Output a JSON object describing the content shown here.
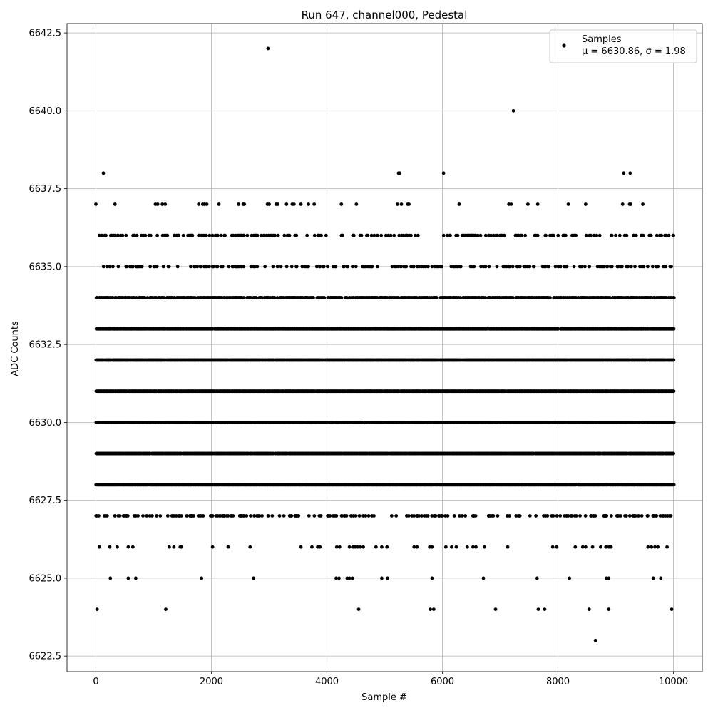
{
  "chart_data": {
    "type": "scatter",
    "title": "Run 647, channel000, Pedestal",
    "xlabel": "Sample #",
    "ylabel": "ADC Counts",
    "xlim": [
      -500,
      10500
    ],
    "ylim": [
      6622.0,
      6642.8
    ],
    "x_ticks": [
      0,
      2000,
      4000,
      6000,
      8000,
      10000
    ],
    "x_tick_labels": [
      "0",
      "2000",
      "4000",
      "6000",
      "8000",
      "10000"
    ],
    "y_ticks": [
      6622.5,
      6625.0,
      6627.5,
      6630.0,
      6632.5,
      6635.0,
      6637.5,
      6640.0,
      6642.5
    ],
    "y_tick_labels": [
      "6622.5",
      "6625.0",
      "6627.5",
      "6630.0",
      "6632.5",
      "6635.0",
      "6637.5",
      "6640.0",
      "6642.5"
    ],
    "grid": true,
    "legend": {
      "placement": "top-right",
      "entry_name": "Samples",
      "entry_stats": "μ = 6630.86, σ = 1.98"
    },
    "marker_color": "#000000",
    "n_samples": 10000,
    "sample_range": [
      0,
      10000
    ],
    "level_rows": [
      {
        "y": 6631,
        "fill": "dense"
      },
      {
        "y": 6632,
        "fill": "dense"
      },
      {
        "y": 6630,
        "fill": "dense"
      },
      {
        "y": 6629,
        "fill": "dense"
      },
      {
        "y": 6633,
        "fill": "dense"
      },
      {
        "y": 6628,
        "fill": "dense"
      },
      {
        "y": 6634,
        "fill": "medium"
      },
      {
        "y": 6627,
        "fill": "sparse"
      },
      {
        "y": 6635,
        "fill": "sparse"
      },
      {
        "y": 6636,
        "fill": "sparse"
      }
    ],
    "series": [
      {
        "points": [
          [
            0,
            6637
          ],
          [
            2980,
            6642
          ],
          [
            7230,
            6640
          ],
          [
            130,
            6638
          ],
          [
            5240,
            6638
          ],
          [
            5260,
            6638
          ],
          [
            6020,
            6638
          ],
          [
            9140,
            6638
          ],
          [
            9250,
            6638
          ],
          [
            330,
            6637
          ],
          [
            1030,
            6637
          ],
          [
            1070,
            6637
          ],
          [
            1150,
            6637
          ],
          [
            1200,
            6637
          ],
          [
            1780,
            6637
          ],
          [
            1850,
            6637
          ],
          [
            1880,
            6637
          ],
          [
            1920,
            6637
          ],
          [
            2130,
            6637
          ],
          [
            2470,
            6637
          ],
          [
            2550,
            6637
          ],
          [
            2570,
            6637
          ],
          [
            2970,
            6637
          ],
          [
            3000,
            6637
          ],
          [
            3120,
            6637
          ],
          [
            3150,
            6637
          ],
          [
            3300,
            6637
          ],
          [
            3400,
            6637
          ],
          [
            3430,
            6637
          ],
          [
            3550,
            6637
          ],
          [
            3680,
            6637
          ],
          [
            3780,
            6637
          ],
          [
            4250,
            6637
          ],
          [
            4510,
            6637
          ],
          [
            5220,
            6637
          ],
          [
            5290,
            6637
          ],
          [
            5400,
            6637
          ],
          [
            5420,
            6637
          ],
          [
            6290,
            6637
          ],
          [
            7150,
            6637
          ],
          [
            7190,
            6637
          ],
          [
            7480,
            6637
          ],
          [
            7650,
            6637
          ],
          [
            8180,
            6637
          ],
          [
            8480,
            6637
          ],
          [
            9120,
            6637
          ],
          [
            9240,
            6637
          ],
          [
            9260,
            6637
          ],
          [
            9470,
            6637
          ],
          [
            20,
            6624
          ],
          [
            1210,
            6624
          ],
          [
            4550,
            6624
          ],
          [
            5790,
            6624
          ],
          [
            5850,
            6624
          ],
          [
            6920,
            6624
          ],
          [
            7660,
            6624
          ],
          [
            7770,
            6624
          ],
          [
            8540,
            6624
          ],
          [
            8880,
            6624
          ],
          [
            9970,
            6624
          ],
          [
            8650,
            6623
          ],
          [
            250,
            6625
          ],
          [
            560,
            6625
          ],
          [
            690,
            6625
          ],
          [
            1830,
            6625
          ],
          [
            2730,
            6625
          ],
          [
            4160,
            6625
          ],
          [
            4210,
            6625
          ],
          [
            4350,
            6625
          ],
          [
            4390,
            6625
          ],
          [
            4440,
            6625
          ],
          [
            4950,
            6625
          ],
          [
            5050,
            6625
          ],
          [
            5820,
            6625
          ],
          [
            6710,
            6625
          ],
          [
            7640,
            6625
          ],
          [
            8200,
            6625
          ],
          [
            8840,
            6625
          ],
          [
            8880,
            6625
          ],
          [
            9650,
            6625
          ],
          [
            9780,
            6625
          ],
          [
            60,
            6626
          ],
          [
            240,
            6626
          ],
          [
            370,
            6626
          ],
          [
            560,
            6626
          ],
          [
            640,
            6626
          ],
          [
            1270,
            6626
          ],
          [
            1350,
            6626
          ],
          [
            1460,
            6626
          ],
          [
            1480,
            6626
          ],
          [
            2020,
            6626
          ],
          [
            2290,
            6626
          ],
          [
            2670,
            6626
          ],
          [
            3550,
            6626
          ],
          [
            3740,
            6626
          ],
          [
            3840,
            6626
          ],
          [
            3880,
            6626
          ],
          [
            4170,
            6626
          ],
          [
            4220,
            6626
          ],
          [
            4390,
            6626
          ],
          [
            4450,
            6626
          ],
          [
            4490,
            6626
          ],
          [
            4530,
            6626
          ],
          [
            4580,
            6626
          ],
          [
            4630,
            6626
          ],
          [
            4850,
            6626
          ],
          [
            4950,
            6626
          ],
          [
            5040,
            6626
          ],
          [
            5510,
            6626
          ],
          [
            5560,
            6626
          ],
          [
            5780,
            6626
          ],
          [
            5820,
            6626
          ],
          [
            6060,
            6626
          ],
          [
            6160,
            6626
          ],
          [
            6240,
            6626
          ],
          [
            6430,
            6626
          ],
          [
            6530,
            6626
          ],
          [
            6580,
            6626
          ],
          [
            6730,
            6626
          ],
          [
            7130,
            6626
          ],
          [
            7910,
            6626
          ],
          [
            7980,
            6626
          ],
          [
            8300,
            6626
          ],
          [
            8430,
            6626
          ],
          [
            8480,
            6626
          ],
          [
            8600,
            6626
          ],
          [
            8740,
            6626
          ],
          [
            8830,
            6626
          ],
          [
            8880,
            6626
          ],
          [
            8920,
            6626
          ],
          [
            9560,
            6626
          ],
          [
            9620,
            6626
          ],
          [
            9680,
            6626
          ],
          [
            9730,
            6626
          ],
          [
            9890,
            6626
          ]
        ]
      }
    ]
  }
}
